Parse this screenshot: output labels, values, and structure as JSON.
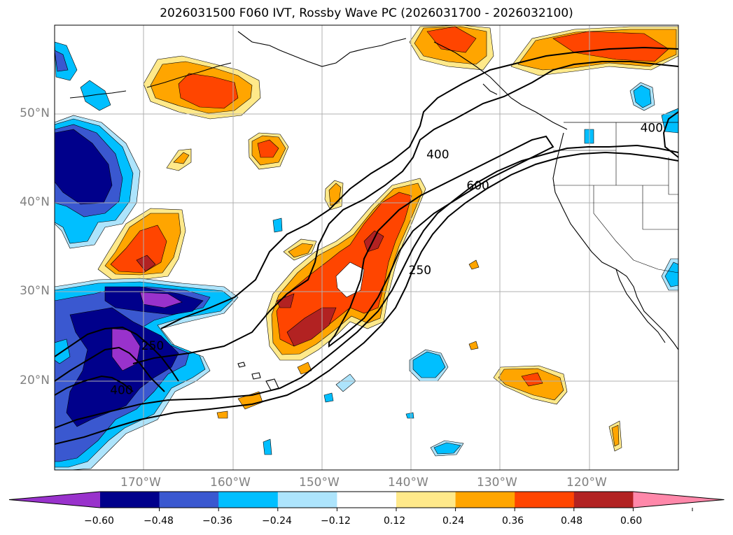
{
  "title": "2026031500 F060 IVT, Rossby Wave PC (2026031700 - 2026032100)",
  "map": {
    "lon_range": [
      -180,
      -110
    ],
    "lat_range": [
      10,
      60
    ],
    "lon_ticks": [
      {
        "value": -170,
        "label": "170°W"
      },
      {
        "value": -160,
        "label": "160°W"
      },
      {
        "value": -150,
        "label": "150°W"
      },
      {
        "value": -140,
        "label": "140°W"
      },
      {
        "value": -130,
        "label": "130°W"
      },
      {
        "value": -120,
        "label": "120°W"
      }
    ],
    "lat_ticks": [
      {
        "value": 20,
        "label": "20°N"
      },
      {
        "value": 30,
        "label": "30°N"
      },
      {
        "value": 40,
        "label": "40°N"
      },
      {
        "value": 50,
        "label": "50°N"
      }
    ],
    "gridlines": true,
    "contour_labels": [
      {
        "text": "400",
        "lon": -137.0,
        "lat": 45.5
      },
      {
        "text": "600",
        "lon": -132.5,
        "lat": 42.0
      },
      {
        "text": "250",
        "lon": -139.0,
        "lat": 32.5
      },
      {
        "text": "250",
        "lon": -169.0,
        "lat": 24.0
      },
      {
        "text": "400",
        "lon": -172.5,
        "lat": 19.0
      },
      {
        "text": "400",
        "lon": -113.0,
        "lat": 48.5
      }
    ]
  },
  "colorbar": {
    "labels": [
      "−0.60",
      "−0.48",
      "−0.36",
      "−0.24",
      "−0.12",
      "0.12",
      "0.24",
      "0.36",
      "0.48",
      "0.60"
    ],
    "bins": [
      {
        "color": "#9932cc"
      },
      {
        "color": "#00008b"
      },
      {
        "color": "#3a58d0"
      },
      {
        "color": "#00bfff"
      },
      {
        "color": "#ade4fc"
      },
      {
        "color": "#ffffff"
      },
      {
        "color": "#ffe98a"
      },
      {
        "color": "#ffa500"
      },
      {
        "color": "#ff4500"
      },
      {
        "color": "#b22222"
      },
      {
        "color": "#ff88aa"
      }
    ],
    "extend": "both"
  }
}
